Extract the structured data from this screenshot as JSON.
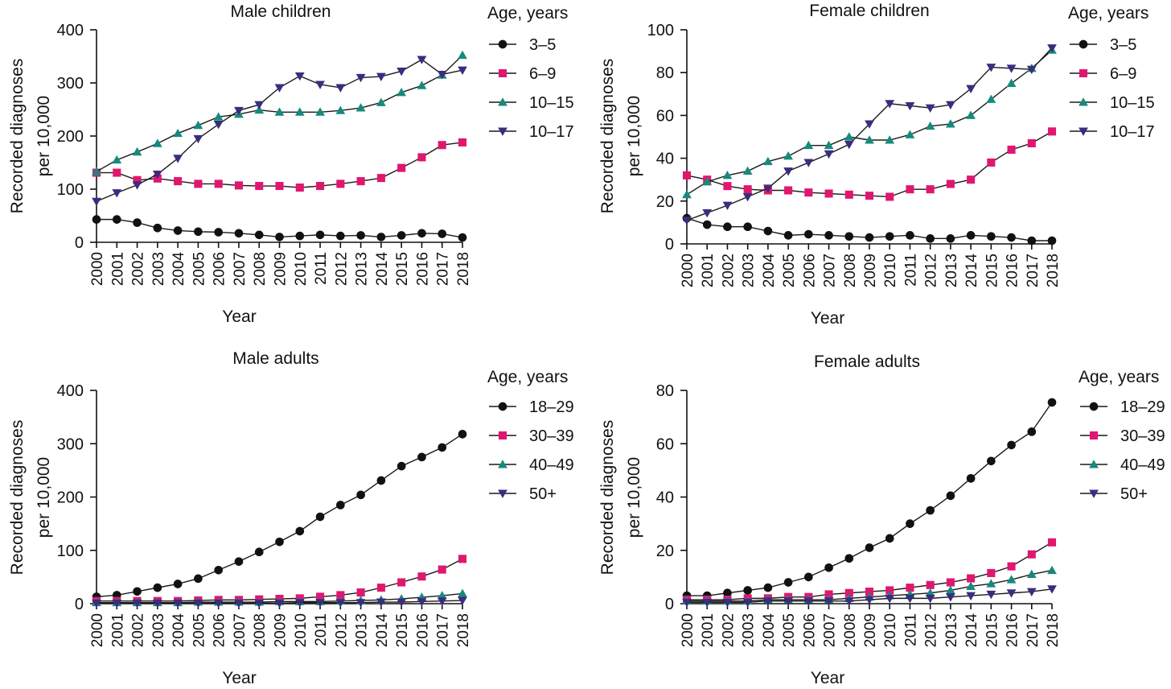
{
  "colors": {
    "axis": "#111111",
    "line": "#1a1a1a"
  },
  "chart_data": [
    {
      "type": "line",
      "title": "Male children",
      "xlabel": "Year",
      "ylabel": [
        "Recorded diagnoses",
        "per 10,000"
      ],
      "legend_title": "Age, years",
      "legend_position": "right",
      "categories": [
        "2000",
        "2001",
        "2002",
        "2003",
        "2004",
        "2005",
        "2006",
        "2007",
        "2008",
        "2009",
        "2010",
        "2011",
        "2012",
        "2013",
        "2014",
        "2015",
        "2016",
        "2017",
        "2018"
      ],
      "ylim": [
        0,
        400
      ],
      "yticks": [
        "0",
        "100",
        "200",
        "300",
        "400"
      ],
      "series": [
        {
          "name": "3–5",
          "marker": "circle",
          "color": "#111111",
          "values": [
            43,
            43,
            37,
            27,
            22,
            20,
            19,
            17,
            14,
            10,
            12,
            14,
            12,
            13,
            10,
            13,
            17,
            16,
            9
          ]
        },
        {
          "name": "6–9",
          "marker": "square",
          "color": "#e0176f",
          "values": [
            131,
            131,
            117,
            120,
            115,
            110,
            110,
            107,
            106,
            106,
            103,
            106,
            110,
            115,
            121,
            140,
            160,
            183,
            188
          ]
        },
        {
          "name": "10–15",
          "marker": "triangle-up",
          "color": "#168a7e",
          "values": [
            133,
            155,
            170,
            186,
            205,
            220,
            236,
            241,
            249,
            245,
            245,
            245,
            248,
            253,
            263,
            282,
            295,
            315,
            352
          ]
        },
        {
          "name": "10–17",
          "marker": "triangle-down",
          "color": "#3c2c7e",
          "values": [
            77,
            93,
            108,
            128,
            158,
            195,
            222,
            248,
            259,
            291,
            313,
            297,
            291,
            310,
            312,
            322,
            344,
            316,
            324
          ]
        }
      ]
    },
    {
      "type": "line",
      "title": "Female children",
      "xlabel": "Year",
      "ylabel": [
        "Recorded diagnoses",
        "per 10,000"
      ],
      "legend_title": "Age, years",
      "legend_position": "right",
      "categories": [
        "2000",
        "2001",
        "2002",
        "2003",
        "2004",
        "2005",
        "2006",
        "2007",
        "2008",
        "2009",
        "2010",
        "2011",
        "2012",
        "2013",
        "2014",
        "2015",
        "2016",
        "2017",
        "2018"
      ],
      "ylim": [
        0,
        100
      ],
      "yticks": [
        "0",
        "20",
        "40",
        "60",
        "80",
        "100"
      ],
      "series": [
        {
          "name": "3–5",
          "marker": "circle",
          "color": "#111111",
          "values": [
            12,
            9,
            8,
            8,
            6,
            4,
            4.5,
            4,
            3.5,
            3,
            3.5,
            4,
            2.5,
            2.5,
            4,
            3.5,
            3,
            1.5,
            1.5
          ]
        },
        {
          "name": "6–9",
          "marker": "square",
          "color": "#e0176f",
          "values": [
            32,
            30,
            27,
            25.5,
            25,
            25,
            24,
            23.5,
            23,
            22.5,
            22,
            25.5,
            25.5,
            28,
            30,
            38,
            44,
            47,
            52.5
          ]
        },
        {
          "name": "10–15",
          "marker": "triangle-up",
          "color": "#168a7e",
          "values": [
            23,
            29,
            32,
            34,
            38.5,
            41,
            46,
            46,
            50,
            48.5,
            48.5,
            51,
            55,
            56,
            60,
            67.5,
            75,
            82,
            90.5
          ]
        },
        {
          "name": "10–17",
          "marker": "triangle-down",
          "color": "#3c2c7e",
          "values": [
            11,
            14.5,
            18,
            22,
            26,
            34,
            38,
            42,
            46.5,
            56,
            65.5,
            64.5,
            63.5,
            65,
            72.5,
            82.5,
            82,
            81.5,
            91.5
          ]
        }
      ]
    },
    {
      "type": "line",
      "title": "Male adults",
      "xlabel": "Year",
      "ylabel": [
        "Recorded diagnoses",
        "per 10,000"
      ],
      "legend_title": "Age, years",
      "legend_position": "right",
      "categories": [
        "2000",
        "2001",
        "2002",
        "2003",
        "2004",
        "2005",
        "2006",
        "2007",
        "2008",
        "2009",
        "2010",
        "2011",
        "2012",
        "2013",
        "2014",
        "2015",
        "2016",
        "2017",
        "2018"
      ],
      "ylim": [
        0,
        400
      ],
      "yticks": [
        "0",
        "100",
        "200",
        "300",
        "400"
      ],
      "series": [
        {
          "name": "18–29",
          "marker": "circle",
          "color": "#111111",
          "values": [
            13,
            16,
            23,
            30,
            37,
            47,
            63,
            79,
            97,
            116,
            136,
            163,
            185,
            204,
            231,
            258,
            275,
            293,
            318
          ]
        },
        {
          "name": "30–39",
          "marker": "square",
          "color": "#e0176f",
          "values": [
            5,
            5,
            5,
            5,
            5,
            6,
            7,
            7,
            8,
            9,
            10,
            13,
            16,
            21,
            30,
            40,
            51,
            64,
            84
          ]
        },
        {
          "name": "40–49",
          "marker": "triangle-up",
          "color": "#168a7e",
          "values": [
            2,
            2,
            2,
            2,
            2,
            3,
            3,
            3,
            3,
            4,
            4,
            4,
            5,
            6,
            7,
            9,
            12,
            15,
            19
          ]
        },
        {
          "name": "50+",
          "marker": "triangle-down",
          "color": "#3c2c7e",
          "values": [
            1,
            1,
            1,
            1,
            1,
            1,
            1,
            1,
            1,
            1,
            2,
            2,
            2,
            2,
            3,
            3,
            4,
            5,
            6
          ]
        }
      ]
    },
    {
      "type": "line",
      "title": "Female adults",
      "xlabel": "Year",
      "ylabel": [
        "Recorded diagnoses",
        "per 10,000"
      ],
      "legend_title": "Age, years",
      "legend_position": "right",
      "categories": [
        "2000",
        "2001",
        "2002",
        "2003",
        "2004",
        "2005",
        "2006",
        "2007",
        "2008",
        "2009",
        "2010",
        "2011",
        "2012",
        "2013",
        "2014",
        "2015",
        "2016",
        "2017",
        "2018"
      ],
      "ylim": [
        0,
        80
      ],
      "yticks": [
        "0",
        "20",
        "40",
        "60",
        "80"
      ],
      "series": [
        {
          "name": "18–29",
          "marker": "circle",
          "color": "#111111",
          "values": [
            3,
            3,
            4,
            5,
            6,
            8,
            10,
            13.5,
            17,
            21,
            24.5,
            30,
            35,
            40.5,
            47,
            53.5,
            59.5,
            64.5,
            75.5
          ]
        },
        {
          "name": "30–39",
          "marker": "square",
          "color": "#e0176f",
          "values": [
            1.5,
            1.5,
            1.5,
            2,
            2,
            2.5,
            2.5,
            3.5,
            4,
            4.5,
            5,
            6,
            7,
            8,
            9.5,
            11.5,
            14,
            18.5,
            23
          ]
        },
        {
          "name": "40–49",
          "marker": "triangle-up",
          "color": "#168a7e",
          "values": [
            1,
            1,
            1,
            1,
            1.5,
            1.5,
            1.5,
            1.5,
            2,
            2.5,
            3,
            3.5,
            4,
            5,
            6.5,
            7.5,
            9,
            11,
            12.5
          ]
        },
        {
          "name": "50+",
          "marker": "triangle-down",
          "color": "#3c2c7e",
          "values": [
            0.5,
            0.5,
            0.5,
            0.5,
            1,
            1,
            1,
            1,
            1,
            1.5,
            2,
            2,
            2,
            2.5,
            3,
            3.5,
            4,
            4.5,
            5.5
          ]
        }
      ]
    }
  ]
}
